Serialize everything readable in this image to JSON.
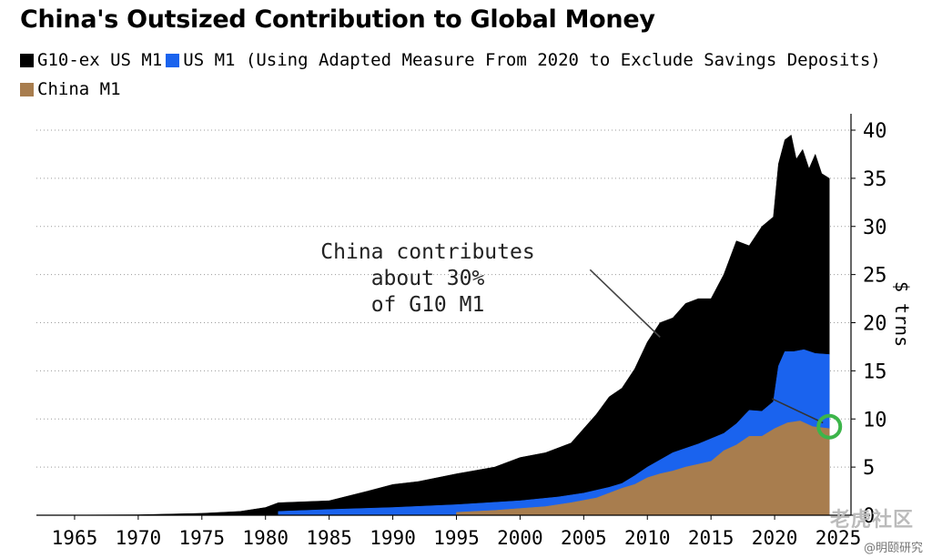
{
  "watermark": {
    "logo_text": "老虎社区",
    "caption": "@明颐研究"
  },
  "chart_data": {
    "type": "area",
    "title": "China's Outsized Contribution to Global Money",
    "ylabel": "$ trns",
    "xlabel": "",
    "xlim": [
      1962,
      2026
    ],
    "ylim": [
      0,
      40
    ],
    "x_ticks": [
      1965,
      1970,
      1975,
      1980,
      1985,
      1990,
      1995,
      2000,
      2005,
      2010,
      2015,
      2020,
      2025
    ],
    "x_tick_labels": [
      "1965",
      "1970",
      "1975",
      "1980",
      "1985",
      "1990",
      "1995",
      "2000",
      "2005",
      "2010",
      "2015",
      "2020",
      "2025"
    ],
    "y_ticks": [
      0,
      5,
      10,
      15,
      20,
      25,
      30,
      35,
      40
    ],
    "y_tick_labels": [
      "0",
      "5",
      "10",
      "15",
      "20",
      "25",
      "30",
      "35",
      "40"
    ],
    "grid": "horizontal dotted",
    "y_axis_side": "right",
    "legend_position": "top-left",
    "stacked": false,
    "series": [
      {
        "name": "G10-ex US M1",
        "color": "#000000",
        "x": [
          1962,
          1970,
          1975,
          1978,
          1980,
          1981,
          1985,
          1988,
          1990,
          1992,
          1995,
          1998,
          2000,
          2002,
          2004,
          2006,
          2007,
          2008,
          2009,
          2010,
          2011,
          2012,
          2013,
          2014,
          2015,
          2016,
          2017,
          2018,
          2019,
          2019.9,
          2020.3,
          2020.8,
          2021.3,
          2021.7,
          2022.2,
          2022.7,
          2023.2,
          2023.7,
          2024.3
        ],
        "values": [
          0,
          0.05,
          0.2,
          0.4,
          0.8,
          1.3,
          1.5,
          2.5,
          3.2,
          3.5,
          4.3,
          5.0,
          6.0,
          6.5,
          7.5,
          10.5,
          12.3,
          13.2,
          15.2,
          18.0,
          20.0,
          20.5,
          22.0,
          22.5,
          22.5,
          25.0,
          28.5,
          28.0,
          30.0,
          31.0,
          36.5,
          39.0,
          39.5,
          37.0,
          38.0,
          36.0,
          37.5,
          35.5,
          35.0
        ]
      },
      {
        "name": "US M1 (Using Adapted Measure From 2020 to Exclude Savings Deposits)",
        "color": "#1a63ee",
        "x": [
          1981,
          1985,
          1990,
          1995,
          2000,
          2003,
          2005,
          2007,
          2008,
          2009,
          2010,
          2012,
          2014,
          2016,
          2017,
          2018,
          2019,
          2019.9,
          2020.3,
          2020.8,
          2021.5,
          2022.3,
          2023.2,
          2024.3
        ],
        "values": [
          0.4,
          0.6,
          0.8,
          1.1,
          1.5,
          1.9,
          2.3,
          2.9,
          3.3,
          4.1,
          5.0,
          6.5,
          7.4,
          8.5,
          9.5,
          10.9,
          10.8,
          11.8,
          15.5,
          17.0,
          17.0,
          17.2,
          16.8,
          16.7
        ]
      },
      {
        "name": "China M1",
        "color": "#a87d4e",
        "x": [
          1995,
          1998,
          2000,
          2002,
          2004,
          2006,
          2007,
          2008,
          2009,
          2010,
          2011,
          2012,
          2013,
          2014,
          2015,
          2016,
          2017,
          2018,
          2019,
          2020,
          2021,
          2022,
          2023,
          2024.3
        ],
        "values": [
          0.3,
          0.5,
          0.7,
          0.9,
          1.3,
          1.8,
          2.3,
          2.8,
          3.2,
          3.9,
          4.3,
          4.6,
          5.0,
          5.3,
          5.6,
          6.7,
          7.3,
          8.2,
          8.2,
          9.0,
          9.6,
          9.8,
          9.2,
          9.0
        ]
      }
    ],
    "annotations": [
      {
        "text_lines": [
          "China contributes",
          "about 30%",
          "of G10 M1"
        ],
        "arrow_from": [
          2005.5,
          25.5
        ],
        "arrow_to": [
          2011,
          18.5
        ]
      }
    ],
    "highlight_circle": {
      "x": 2024.3,
      "y": 9.2,
      "color": "#3cb54a"
    },
    "highlight_line": {
      "from": [
        2019.8,
        12.1
      ],
      "to": [
        2023.8,
        9.6
      ],
      "color": "#333333"
    }
  }
}
